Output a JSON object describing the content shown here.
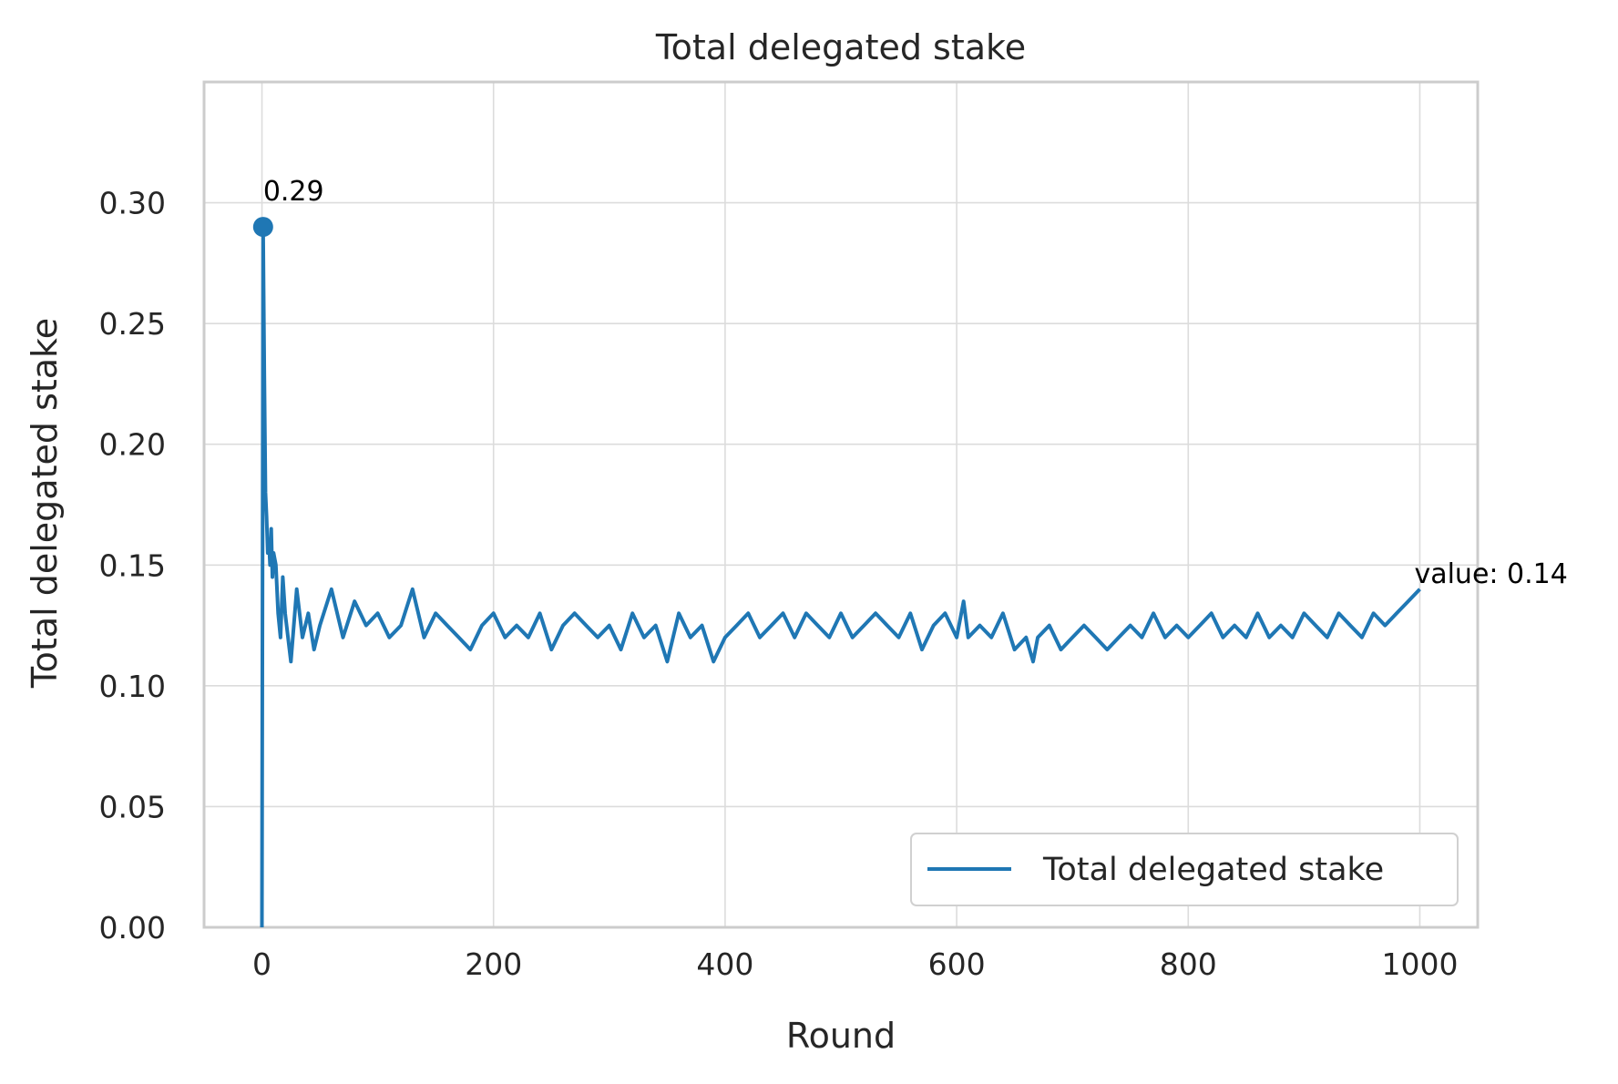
{
  "chart_data": {
    "type": "line",
    "title": "Total delegated stake",
    "xlabel": "Round",
    "ylabel": "Total delegated stake",
    "xlim": [
      -50,
      1050
    ],
    "ylim": [
      0,
      0.35
    ],
    "xticks": [
      0,
      200,
      400,
      600,
      800,
      1000
    ],
    "yticks": [
      0.0,
      0.05,
      0.1,
      0.15,
      0.2,
      0.25,
      0.3
    ],
    "xtick_labels": [
      "0",
      "200",
      "400",
      "600",
      "800",
      "1000"
    ],
    "ytick_labels": [
      "0.00",
      "0.05",
      "0.10",
      "0.15",
      "0.20",
      "0.25",
      "0.30"
    ],
    "grid": true,
    "legend_position": "bottom-right",
    "series": [
      {
        "name": "Total delegated stake",
        "color": "#1f77b4",
        "x": [
          0,
          1,
          2,
          3,
          4,
          5,
          6,
          7,
          8,
          9,
          10,
          12,
          14,
          16,
          18,
          20,
          25,
          30,
          35,
          40,
          45,
          50,
          60,
          70,
          80,
          90,
          100,
          110,
          120,
          130,
          140,
          150,
          160,
          170,
          180,
          190,
          200,
          210,
          220,
          230,
          240,
          250,
          260,
          270,
          280,
          290,
          300,
          310,
          320,
          330,
          340,
          350,
          360,
          370,
          380,
          390,
          400,
          410,
          420,
          430,
          440,
          450,
          460,
          470,
          480,
          490,
          500,
          510,
          520,
          530,
          540,
          550,
          560,
          570,
          580,
          590,
          600,
          606,
          610,
          620,
          630,
          640,
          650,
          660,
          666,
          670,
          680,
          690,
          700,
          710,
          720,
          730,
          740,
          750,
          760,
          770,
          780,
          790,
          800,
          810,
          820,
          830,
          840,
          850,
          860,
          870,
          880,
          890,
          900,
          910,
          920,
          930,
          940,
          950,
          960,
          970,
          980,
          990,
          1000
        ],
        "y": [
          0.0,
          0.29,
          0.23,
          0.18,
          0.17,
          0.155,
          0.16,
          0.15,
          0.165,
          0.145,
          0.155,
          0.15,
          0.13,
          0.12,
          0.145,
          0.13,
          0.11,
          0.14,
          0.12,
          0.13,
          0.115,
          0.125,
          0.14,
          0.12,
          0.135,
          0.125,
          0.13,
          0.12,
          0.125,
          0.14,
          0.12,
          0.13,
          0.125,
          0.12,
          0.115,
          0.125,
          0.13,
          0.12,
          0.125,
          0.12,
          0.13,
          0.115,
          0.125,
          0.13,
          0.125,
          0.12,
          0.125,
          0.115,
          0.13,
          0.12,
          0.125,
          0.11,
          0.13,
          0.12,
          0.125,
          0.11,
          0.12,
          0.125,
          0.13,
          0.12,
          0.125,
          0.13,
          0.12,
          0.13,
          0.125,
          0.12,
          0.13,
          0.12,
          0.125,
          0.13,
          0.125,
          0.12,
          0.13,
          0.115,
          0.125,
          0.13,
          0.12,
          0.135,
          0.12,
          0.125,
          0.12,
          0.13,
          0.115,
          0.12,
          0.11,
          0.12,
          0.125,
          0.115,
          0.12,
          0.125,
          0.12,
          0.115,
          0.12,
          0.125,
          0.12,
          0.13,
          0.12,
          0.125,
          0.12,
          0.125,
          0.13,
          0.12,
          0.125,
          0.12,
          0.13,
          0.12,
          0.125,
          0.12,
          0.13,
          0.125,
          0.12,
          0.13,
          0.125,
          0.12,
          0.13,
          0.125,
          0.13,
          0.135,
          0.14
        ]
      }
    ],
    "annotations": [
      {
        "text": "0.29",
        "x": 1,
        "y": 0.29,
        "marker": true
      },
      {
        "text": "value: 0.14",
        "x": 1000,
        "y": 0.14
      }
    ]
  }
}
